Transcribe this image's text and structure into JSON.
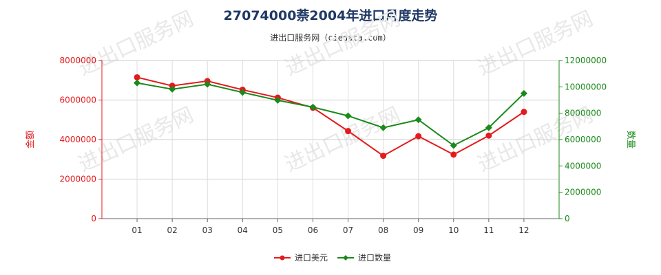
{
  "title": "27074000萘2004年进口月度走势",
  "subtitle": "进出口服务网（ciedata.com）",
  "watermark": "进出口服务网",
  "chart_data": {
    "type": "line",
    "categories": [
      "01",
      "02",
      "03",
      "04",
      "05",
      "06",
      "07",
      "08",
      "09",
      "10",
      "11",
      "12"
    ],
    "series": [
      {
        "name": "进口美元",
        "axis": "left",
        "color": "#e41a1c",
        "marker": "circle",
        "values": [
          7150000,
          6720000,
          6960000,
          6520000,
          6120000,
          5610000,
          4430000,
          3180000,
          4170000,
          3240000,
          4200000,
          5400000
        ]
      },
      {
        "name": "进口数量",
        "axis": "right",
        "color": "#1a8a1a",
        "marker": "diamond",
        "values": [
          10300000,
          9820000,
          10200000,
          9580000,
          8980000,
          8460000,
          7800000,
          6900000,
          7500000,
          5550000,
          6900000,
          9500000
        ]
      }
    ],
    "y_left": {
      "label": "金额",
      "min": 0,
      "max": 8000000,
      "ticks": [
        "0",
        "2000000",
        "4000000",
        "6000000",
        "8000000"
      ],
      "color": "#e41a1c"
    },
    "y_right": {
      "label": "数量",
      "min": 0,
      "max": 12000000,
      "ticks": [
        "0",
        "2000000",
        "4000000",
        "6000000",
        "8000000",
        "10000000",
        "12000000"
      ],
      "color": "#1a8a1a"
    },
    "grid": true,
    "legend_position": "bottom-center"
  }
}
